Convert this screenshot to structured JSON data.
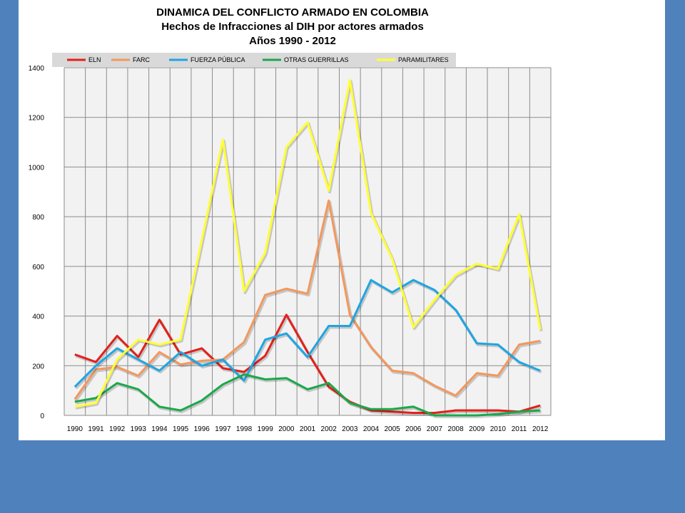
{
  "chart_data": {
    "type": "line",
    "title": [
      "DINAMICA DEL CONFLICTO ARMADO EN COLOMBIA",
      "Hechos de Infracciones al DIH por actores armados",
      "Años 1990 - 2012"
    ],
    "x": [
      "1990",
      "1991",
      "1992",
      "1993",
      "1994",
      "1995",
      "1996",
      "1997",
      "1998",
      "1999",
      "2000",
      "2001",
      "2002",
      "2003",
      "2004",
      "2005",
      "2006",
      "2007",
      "2008",
      "2009",
      "2010",
      "2011",
      "2012"
    ],
    "ylim": [
      0,
      1400
    ],
    "yticks": [
      0,
      200,
      400,
      600,
      800,
      1000,
      1200,
      1400
    ],
    "grid": true,
    "legend_position": "top",
    "series": [
      {
        "name": "ELN",
        "color": "#e3201b",
        "values": [
          245,
          215,
          320,
          235,
          385,
          245,
          270,
          190,
          175,
          240,
          405,
          255,
          115,
          55,
          20,
          15,
          10,
          10,
          20,
          20,
          20,
          15,
          40
        ]
      },
      {
        "name": "FARC",
        "color": "#f4975c",
        "values": [
          65,
          185,
          195,
          160,
          255,
          205,
          220,
          225,
          295,
          485,
          510,
          490,
          865,
          405,
          275,
          180,
          170,
          120,
          80,
          170,
          160,
          285,
          300
        ]
      },
      {
        "name": "FUERZA PÚBLICA",
        "color": "#1fa5e3",
        "values": [
          115,
          200,
          270,
          225,
          180,
          255,
          200,
          225,
          140,
          305,
          330,
          235,
          360,
          360,
          545,
          495,
          545,
          505,
          425,
          290,
          285,
          215,
          180
        ]
      },
      {
        "name": "OTRAS GUERRILLAS",
        "color": "#1aa84a",
        "values": [
          55,
          70,
          130,
          105,
          35,
          20,
          60,
          125,
          165,
          145,
          150,
          105,
          130,
          50,
          25,
          25,
          35,
          0,
          0,
          0,
          5,
          15,
          20
        ]
      },
      {
        "name": "PARAMILITARES",
        "color": "#ffff33",
        "values": [
          35,
          50,
          225,
          305,
          285,
          305,
          705,
          1110,
          500,
          655,
          1080,
          1180,
          905,
          1350,
          815,
          630,
          355,
          465,
          565,
          610,
          590,
          810,
          345
        ]
      }
    ]
  }
}
